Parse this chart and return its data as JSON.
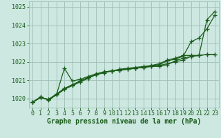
{
  "xlabel": "Graphe pression niveau de la mer (hPa)",
  "bg_color": "#cce8e0",
  "grid_color": "#9dbdb5",
  "line_color": "#1a5c1a",
  "x": [
    0,
    1,
    2,
    3,
    4,
    5,
    6,
    7,
    8,
    9,
    10,
    11,
    12,
    13,
    14,
    15,
    16,
    17,
    18,
    19,
    20,
    21,
    22,
    23
  ],
  "series": [
    [
      1019.8,
      1020.1,
      1019.9,
      1020.2,
      1020.5,
      1020.7,
      1020.9,
      1021.1,
      1021.3,
      1021.4,
      1021.5,
      1021.55,
      1021.6,
      1021.65,
      1021.7,
      1021.75,
      1021.8,
      1021.9,
      1022.0,
      1022.1,
      1022.3,
      1022.35,
      1024.3,
      1024.75
    ],
    [
      1019.8,
      1020.05,
      1019.95,
      1020.25,
      1020.55,
      1020.75,
      1020.95,
      1021.15,
      1021.3,
      1021.45,
      1021.5,
      1021.6,
      1021.65,
      1021.7,
      1021.75,
      1021.8,
      1021.85,
      1022.05,
      1022.15,
      1022.3,
      1023.1,
      1023.3,
      1023.8,
      1024.55
    ],
    [
      1019.8,
      1020.05,
      1019.95,
      1020.2,
      1021.65,
      1020.95,
      1021.05,
      1021.2,
      1021.35,
      1021.45,
      1021.5,
      1021.55,
      1021.6,
      1021.65,
      1021.7,
      1021.75,
      1021.75,
      1021.85,
      1022.05,
      1022.2,
      1022.3,
      1022.35,
      1022.4,
      1022.4
    ],
    [
      1019.8,
      1020.05,
      1019.95,
      1020.2,
      1020.5,
      1020.75,
      1020.95,
      1021.15,
      1021.3,
      1021.45,
      1021.5,
      1021.55,
      1021.6,
      1021.65,
      1021.7,
      1021.8,
      1021.9,
      1022.1,
      1022.2,
      1022.35,
      1022.35,
      1022.35,
      1022.4,
      1022.4
    ]
  ],
  "ylim": [
    1019.5,
    1025.3
  ],
  "yticks": [
    1020,
    1021,
    1022,
    1023,
    1024,
    1025
  ],
  "xticks": [
    0,
    1,
    2,
    3,
    4,
    5,
    6,
    7,
    8,
    9,
    10,
    11,
    12,
    13,
    14,
    15,
    16,
    17,
    18,
    19,
    20,
    21,
    22,
    23
  ],
  "marker": "+",
  "markersize": 4,
  "linewidth": 0.9,
  "xlabel_fontsize": 7,
  "tick_fontsize": 6
}
